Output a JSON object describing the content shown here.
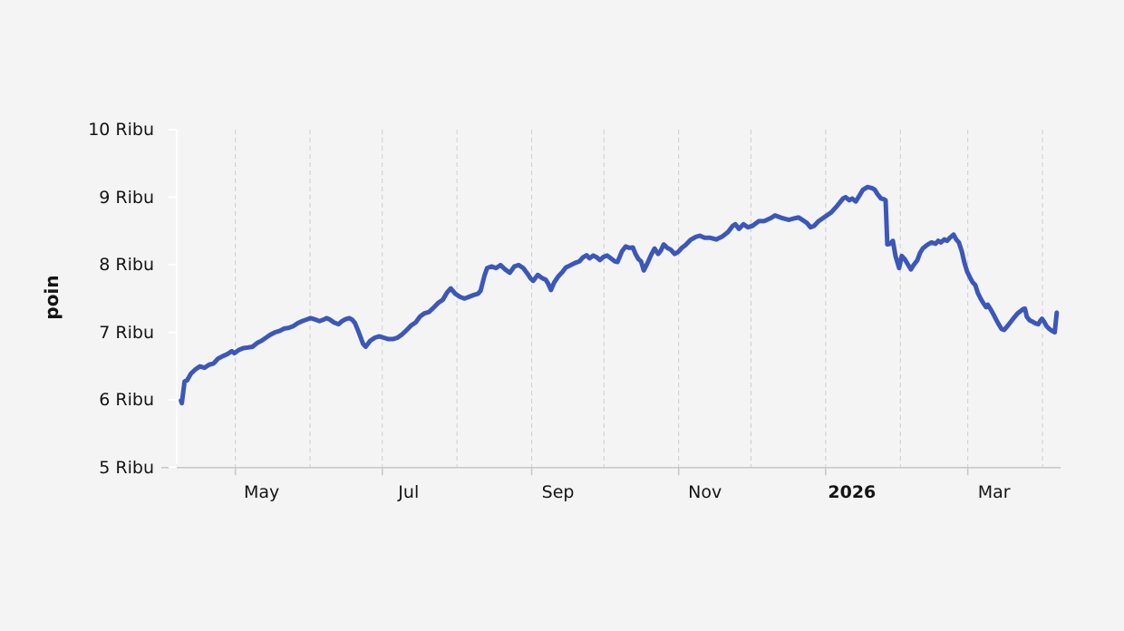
{
  "page": {
    "background": "#f4f4f5"
  },
  "chart_data": {
    "type": "line",
    "title": "",
    "xlabel": "",
    "ylabel": "poin",
    "legend": "none",
    "grid": "vertical-dashed-monthly",
    "ylim": [
      5000,
      10000
    ],
    "y_ticks": [
      {
        "value": 5000,
        "label": "5 Ribu"
      },
      {
        "value": 6000,
        "label": "6 Ribu"
      },
      {
        "value": 7000,
        "label": "7 Ribu"
      },
      {
        "value": 8000,
        "label": "8 Ribu"
      },
      {
        "value": 9000,
        "label": "9 Ribu"
      },
      {
        "value": 10000,
        "label": "10 Ribu"
      }
    ],
    "x_axis": {
      "unit": "days since 2025-04-01 (axis spans Apr 2025 - Apr 2026)",
      "gridline_days": [
        30,
        61,
        91,
        122,
        153,
        183,
        214,
        244,
        275,
        306,
        334,
        365
      ],
      "labeled_ticks": [
        {
          "day": 30,
          "label": "May",
          "bold": false
        },
        {
          "day": 91,
          "label": "Jul",
          "bold": false
        },
        {
          "day": 153,
          "label": "Sep",
          "bold": false
        },
        {
          "day": 214,
          "label": "Nov",
          "bold": false
        },
        {
          "day": 275,
          "label": "2026",
          "bold": true
        },
        {
          "day": 334,
          "label": "Mar",
          "bold": false
        }
      ]
    },
    "colors": {
      "line": "#3c57ba",
      "background": "#f4f4f5",
      "gridline": "#cdcdcd",
      "x_axis": "#c9c9c9",
      "y_axis": "#ffffff",
      "text": "#141414"
    },
    "points": [
      [
        7.4,
        5990
      ],
      [
        7.8,
        5950
      ],
      [
        8.9,
        6270
      ],
      [
        10,
        6290
      ],
      [
        11.5,
        6385
      ],
      [
        13.4,
        6450
      ],
      [
        15.3,
        6495
      ],
      [
        17.2,
        6475
      ],
      [
        19.1,
        6520
      ],
      [
        21,
        6540
      ],
      [
        22.8,
        6610
      ],
      [
        24.7,
        6645
      ],
      [
        26.6,
        6675
      ],
      [
        28.5,
        6720
      ],
      [
        29.6,
        6690
      ],
      [
        31.5,
        6740
      ],
      [
        33.3,
        6765
      ],
      [
        35.2,
        6775
      ],
      [
        37.1,
        6785
      ],
      [
        39,
        6840
      ],
      [
        40.9,
        6875
      ],
      [
        42.7,
        6920
      ],
      [
        44.6,
        6965
      ],
      [
        46.5,
        7000
      ],
      [
        48.4,
        7020
      ],
      [
        50.3,
        7055
      ],
      [
        52.1,
        7065
      ],
      [
        54,
        7090
      ],
      [
        55.9,
        7135
      ],
      [
        57.8,
        7165
      ],
      [
        59.7,
        7190
      ],
      [
        61.2,
        7210
      ],
      [
        63,
        7190
      ],
      [
        64.9,
        7165
      ],
      [
        66.8,
        7190
      ],
      [
        67.9,
        7210
      ],
      [
        69.1,
        7190
      ],
      [
        70.9,
        7145
      ],
      [
        72.8,
        7120
      ],
      [
        74.3,
        7165
      ],
      [
        75.8,
        7195
      ],
      [
        77.3,
        7210
      ],
      [
        78.5,
        7185
      ],
      [
        79.6,
        7140
      ],
      [
        81.1,
        7010
      ],
      [
        83,
        6830
      ],
      [
        84.1,
        6785
      ],
      [
        86,
        6875
      ],
      [
        87.9,
        6920
      ],
      [
        89.7,
        6940
      ],
      [
        91.6,
        6920
      ],
      [
        93.5,
        6900
      ],
      [
        95.4,
        6900
      ],
      [
        97.3,
        6920
      ],
      [
        99.1,
        6965
      ],
      [
        101,
        7030
      ],
      [
        102.9,
        7100
      ],
      [
        104.8,
        7145
      ],
      [
        106.7,
        7235
      ],
      [
        108.5,
        7280
      ],
      [
        110.4,
        7300
      ],
      [
        112.3,
        7365
      ],
      [
        114.2,
        7435
      ],
      [
        116.1,
        7480
      ],
      [
        117.9,
        7590
      ],
      [
        119.4,
        7650
      ],
      [
        121.3,
        7570
      ],
      [
        123.2,
        7525
      ],
      [
        125.1,
        7500
      ],
      [
        127,
        7525
      ],
      [
        128.8,
        7550
      ],
      [
        130.7,
        7570
      ],
      [
        131.8,
        7615
      ],
      [
        133.4,
        7840
      ],
      [
        134.5,
        7950
      ],
      [
        136.4,
        7975
      ],
      [
        138.2,
        7950
      ],
      [
        140.1,
        7995
      ],
      [
        142,
        7930
      ],
      [
        143.9,
        7880
      ],
      [
        145.8,
        7975
      ],
      [
        147.6,
        7995
      ],
      [
        149.5,
        7950
      ],
      [
        151.4,
        7860
      ],
      [
        152.5,
        7800
      ],
      [
        153.6,
        7760
      ],
      [
        155.5,
        7850
      ],
      [
        157.4,
        7800
      ],
      [
        158.8,
        7780
      ],
      [
        159.9,
        7715
      ],
      [
        161,
        7625
      ],
      [
        162.3,
        7735
      ],
      [
        164,
        7825
      ],
      [
        165.7,
        7890
      ],
      [
        167.2,
        7960
      ],
      [
        169,
        7990
      ],
      [
        170.9,
        8025
      ],
      [
        172.8,
        8050
      ],
      [
        174.3,
        8110
      ],
      [
        175.8,
        8140
      ],
      [
        177,
        8095
      ],
      [
        178.5,
        8135
      ],
      [
        180,
        8110
      ],
      [
        181.3,
        8070
      ],
      [
        182.8,
        8115
      ],
      [
        184.3,
        8135
      ],
      [
        185.8,
        8095
      ],
      [
        187.5,
        8050
      ],
      [
        188.6,
        8040
      ],
      [
        190.5,
        8200
      ],
      [
        192,
        8270
      ],
      [
        193.5,
        8250
      ],
      [
        195,
        8255
      ],
      [
        196.1,
        8160
      ],
      [
        197.3,
        8085
      ],
      [
        198.4,
        8050
      ],
      [
        199.5,
        7915
      ],
      [
        201,
        8020
      ],
      [
        202.5,
        8140
      ],
      [
        204,
        8240
      ],
      [
        205.5,
        8160
      ],
      [
        206.6,
        8210
      ],
      [
        207.8,
        8300
      ],
      [
        209.3,
        8250
      ],
      [
        210.8,
        8220
      ],
      [
        212.3,
        8160
      ],
      [
        213.8,
        8190
      ],
      [
        215.3,
        8250
      ],
      [
        216.8,
        8290
      ],
      [
        219,
        8370
      ],
      [
        221.3,
        8415
      ],
      [
        222.8,
        8430
      ],
      [
        224.7,
        8400
      ],
      [
        226.9,
        8400
      ],
      [
        229.6,
        8375
      ],
      [
        232.2,
        8420
      ],
      [
        234.5,
        8485
      ],
      [
        236.4,
        8575
      ],
      [
        237.5,
        8600
      ],
      [
        239,
        8530
      ],
      [
        240.9,
        8600
      ],
      [
        242.7,
        8555
      ],
      [
        244.6,
        8575
      ],
      [
        247.3,
        8645
      ],
      [
        249.5,
        8645
      ],
      [
        252.2,
        8690
      ],
      [
        254,
        8730
      ],
      [
        257,
        8690
      ],
      [
        259.7,
        8665
      ],
      [
        262.3,
        8690
      ],
      [
        263.8,
        8700
      ],
      [
        265.3,
        8665
      ],
      [
        267.2,
        8620
      ],
      [
        268.7,
        8555
      ],
      [
        270.2,
        8575
      ],
      [
        272.1,
        8645
      ],
      [
        274.7,
        8710
      ],
      [
        277.3,
        8775
      ],
      [
        279.6,
        8865
      ],
      [
        282.2,
        8980
      ],
      [
        283.3,
        9000
      ],
      [
        284.8,
        8955
      ],
      [
        286,
        8980
      ],
      [
        287.5,
        8935
      ],
      [
        288.6,
        9000
      ],
      [
        290.5,
        9110
      ],
      [
        292.4,
        9150
      ],
      [
        294.2,
        9135
      ],
      [
        295.4,
        9110
      ],
      [
        296.5,
        9045
      ],
      [
        298,
        8980
      ],
      [
        299.1,
        8970
      ],
      [
        299.9,
        8955
      ],
      [
        300.6,
        8300
      ],
      [
        301.8,
        8310
      ],
      [
        302.9,
        8355
      ],
      [
        304,
        8130
      ],
      [
        305.5,
        7950
      ],
      [
        306.6,
        8130
      ],
      [
        307.8,
        8085
      ],
      [
        309.3,
        7995
      ],
      [
        310.4,
        7930
      ],
      [
        311.5,
        7995
      ],
      [
        313,
        8065
      ],
      [
        314.2,
        8175
      ],
      [
        315.3,
        8240
      ],
      [
        316.8,
        8285
      ],
      [
        317.9,
        8310
      ],
      [
        319,
        8330
      ],
      [
        320.6,
        8310
      ],
      [
        321.7,
        8355
      ],
      [
        322.8,
        8330
      ],
      [
        324.3,
        8375
      ],
      [
        325.4,
        8355
      ],
      [
        326.6,
        8400
      ],
      [
        328.1,
        8445
      ],
      [
        329.2,
        8375
      ],
      [
        330.3,
        8330
      ],
      [
        331.5,
        8200
      ],
      [
        332.6,
        8030
      ],
      [
        333.7,
        7900
      ],
      [
        334.8,
        7820
      ],
      [
        336,
        7740
      ],
      [
        337.1,
        7700
      ],
      [
        338.2,
        7580
      ],
      [
        339.3,
        7500
      ],
      [
        340.5,
        7430
      ],
      [
        341.6,
        7370
      ],
      [
        342.3,
        7410
      ],
      [
        343.5,
        7340
      ],
      [
        344.6,
        7270
      ],
      [
        345.7,
        7190
      ],
      [
        346.8,
        7120
      ],
      [
        348,
        7050
      ],
      [
        349.1,
        7035
      ],
      [
        350.2,
        7080
      ],
      [
        351.3,
        7130
      ],
      [
        352.5,
        7185
      ],
      [
        353.6,
        7235
      ],
      [
        354.7,
        7280
      ],
      [
        355.8,
        7310
      ],
      [
        357,
        7345
      ],
      [
        357.7,
        7350
      ],
      [
        358.5,
        7230
      ],
      [
        359.6,
        7180
      ],
      [
        360.7,
        7160
      ],
      [
        362.2,
        7130
      ],
      [
        363.3,
        7120
      ],
      [
        364.1,
        7170
      ],
      [
        364.8,
        7200
      ],
      [
        365.6,
        7160
      ],
      [
        366.7,
        7090
      ],
      [
        367.8,
        7050
      ],
      [
        369,
        7020
      ],
      [
        370.1,
        7000
      ],
      [
        370.9,
        7290
      ]
    ]
  }
}
